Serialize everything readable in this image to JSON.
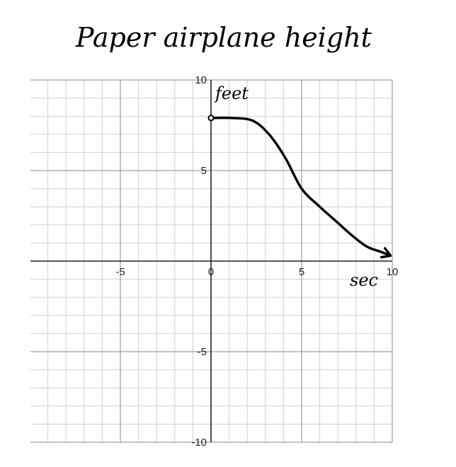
{
  "chart_data": {
    "type": "line",
    "title": "Paper airplane height",
    "xlabel": "sec",
    "ylabel": "feet",
    "xlim": [
      -10,
      10
    ],
    "ylim": [
      -10,
      10
    ],
    "xticks": [
      "-5",
      "0",
      "5",
      "10"
    ],
    "yticks": [
      "10",
      "5",
      "-5",
      "-10"
    ],
    "grid": true,
    "series": [
      {
        "x": [
          0,
          1.2,
          2.3,
          3.2,
          4.1,
          5.0,
          6.0,
          6.9,
          7.8,
          8.6,
          9.4,
          9.9
        ],
        "y": [
          7.9,
          7.9,
          7.75,
          7.0,
          5.7,
          4.0,
          3.0,
          2.2,
          1.4,
          0.8,
          0.5,
          0.3
        ]
      }
    ],
    "start_marker": {
      "x": 0,
      "y": 7.9
    }
  }
}
